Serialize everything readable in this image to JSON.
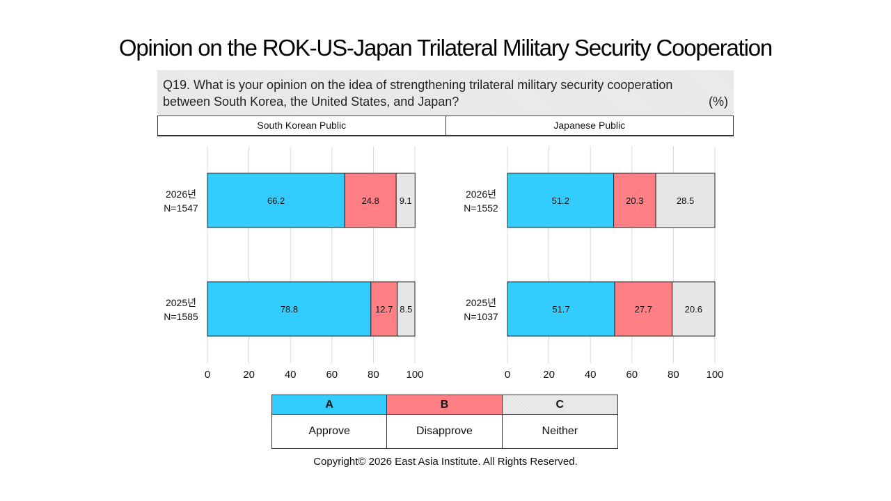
{
  "title": "Opinion on the ROK-US-Japan Trilateral Military Security Cooperation",
  "question": {
    "line1": "Q19. What is your opinion on the idea of strengthening trilateral military security cooperation",
    "line2": "between South Korea, the United States, and Japan?",
    "unit": "(%)"
  },
  "panels": [
    "South Korean Public",
    "Japanese Public"
  ],
  "colors": {
    "A": "#33ccff",
    "B": "#ff7f85",
    "C": "#e6e6e6"
  },
  "legend": [
    {
      "key": "A",
      "label": "Approve"
    },
    {
      "key": "B",
      "label": "Disapprove"
    },
    {
      "key": "C",
      "label": "Neither"
    }
  ],
  "chart_data": [
    {
      "type": "bar",
      "orientation": "horizontal",
      "stacked": true,
      "title": "South Korean Public",
      "categories": [
        {
          "year": "2026년",
          "n": "N=1547"
        },
        {
          "year": "2025년",
          "n": "N=1585"
        }
      ],
      "series": [
        {
          "name": "Approve",
          "key": "A",
          "values": [
            66.2,
            78.8
          ]
        },
        {
          "name": "Disapprove",
          "key": "B",
          "values": [
            24.8,
            12.7
          ]
        },
        {
          "name": "Neither",
          "key": "C",
          "values": [
            9.1,
            8.5
          ]
        }
      ],
      "xlim": [
        0,
        100
      ],
      "xticks": [
        0,
        20,
        40,
        60,
        80,
        100
      ],
      "grid": true
    },
    {
      "type": "bar",
      "orientation": "horizontal",
      "stacked": true,
      "title": "Japanese Public",
      "categories": [
        {
          "year": "2026년",
          "n": "N=1552"
        },
        {
          "year": "2025년",
          "n": "N=1037"
        }
      ],
      "series": [
        {
          "name": "Approve",
          "key": "A",
          "values": [
            51.2,
            51.7
          ]
        },
        {
          "name": "Disapprove",
          "key": "B",
          "values": [
            20.3,
            27.7
          ]
        },
        {
          "name": "Neither",
          "key": "C",
          "values": [
            28.5,
            20.6
          ]
        }
      ],
      "xlim": [
        0,
        100
      ],
      "xticks": [
        0,
        20,
        40,
        60,
        80,
        100
      ],
      "grid": true
    }
  ],
  "copyright": "Copyright© 2026 East Asia Institute. All Rights Reserved."
}
